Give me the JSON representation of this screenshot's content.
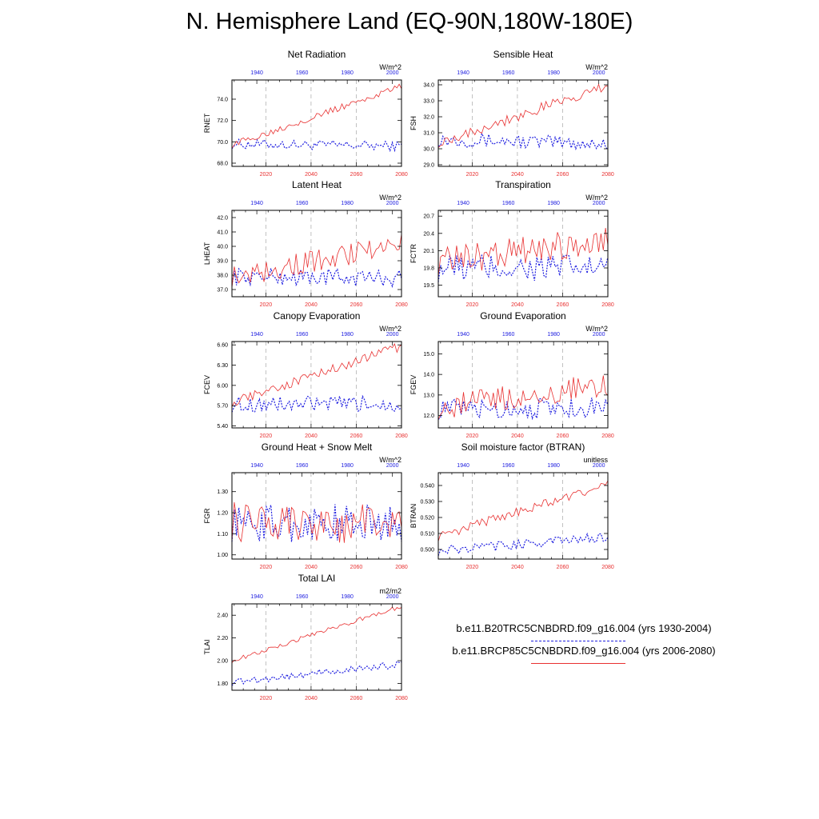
{
  "title": "N. Hemisphere Land (EQ-90N,180W-180E)",
  "legend": {
    "historical": "b.e11.B20TRC5CNBDRD.f09_g16.004 (yrs 1930-2004)",
    "future": "b.e11.BRCP85C5CNBDRD.f09_g16.004 (yrs 2006-2080)"
  },
  "colors": {
    "historical": "#2020e0",
    "future": "#e83030",
    "guides": "#999999"
  },
  "chart_data": [
    {
      "type": "line",
      "title": "Net Radiation",
      "ylabel": "RNET",
      "units": "W/m^2",
      "bottom_axis": {
        "ticks": [
          2020,
          2040,
          2060,
          2080
        ],
        "range": [
          2005,
          2080
        ]
      },
      "top_axis": {
        "ticks": [
          1940,
          1960,
          1980,
          2000
        ],
        "range": [
          1929,
          2004
        ]
      },
      "yticks": [
        "68.0",
        "70.0",
        "72.0",
        "74.0"
      ],
      "ylim": [
        67.7,
        75.8
      ],
      "series": [
        {
          "name": "b.e11.B20TRC5CNBDRD.f09_g16.004",
          "style": "dashed",
          "start": 69.8,
          "end": 69.6,
          "noise": 0.45
        },
        {
          "name": "b.e11.BRCP85C5CNBDRD.f09_g16.004",
          "style": "solid",
          "start": 69.7,
          "end": 75.2,
          "noise": 0.3
        }
      ]
    },
    {
      "type": "line",
      "title": "Sensible Heat",
      "ylabel": "FSH",
      "units": "W/m^2",
      "bottom_axis": {
        "ticks": [
          2020,
          2040,
          2060,
          2080
        ],
        "range": [
          2005,
          2080
        ]
      },
      "top_axis": {
        "ticks": [
          1940,
          1960,
          1980,
          2000
        ],
        "range": [
          1929,
          2004
        ]
      },
      "yticks": [
        "29.0",
        "30.0",
        "31.0",
        "32.0",
        "33.0",
        "34.0"
      ],
      "ylim": [
        28.9,
        34.3
      ],
      "series": [
        {
          "name": "b.e11.B20TRC5CNBDRD.f09_g16.004",
          "style": "dashed",
          "start": 30.6,
          "end": 30.3,
          "noise": 0.45
        },
        {
          "name": "b.e11.BRCP85C5CNBDRD.f09_g16.004",
          "style": "solid",
          "start": 30.4,
          "end": 33.9,
          "noise": 0.35
        }
      ]
    },
    {
      "type": "line",
      "title": "Latent Heat",
      "ylabel": "LHEAT",
      "units": "W/m^2",
      "bottom_axis": {
        "ticks": [
          2020,
          2040,
          2060,
          2080
        ],
        "range": [
          2005,
          2080
        ]
      },
      "top_axis": {
        "ticks": [
          1940,
          1960,
          1980,
          2000
        ],
        "range": [
          1929,
          2004
        ]
      },
      "yticks": [
        "37.0",
        "38.0",
        "39.0",
        "40.0",
        "41.0",
        "42.0"
      ],
      "ylim": [
        36.5,
        42.5
      ],
      "series": [
        {
          "name": "b.e11.B20TRC5CNBDRD.f09_g16.004",
          "style": "dashed",
          "start": 37.9,
          "end": 37.8,
          "noise": 0.6
        },
        {
          "name": "b.e11.BRCP85C5CNBDRD.f09_g16.004",
          "style": "solid",
          "start": 37.9,
          "end": 40.2,
          "noise": 0.8
        }
      ]
    },
    {
      "type": "line",
      "title": "Transpiration",
      "ylabel": "FCTR",
      "units": "W/m^2",
      "bottom_axis": {
        "ticks": [
          2020,
          2040,
          2060,
          2080
        ],
        "range": [
          2005,
          2080
        ]
      },
      "top_axis": {
        "ticks": [
          1940,
          1960,
          1980,
          2000
        ],
        "range": [
          1929,
          2004
        ]
      },
      "yticks": [
        "19.5",
        "19.8",
        "20.1",
        "20.4",
        "20.7"
      ],
      "ylim": [
        19.3,
        20.8
      ],
      "series": [
        {
          "name": "b.e11.B20TRC5CNBDRD.f09_g16.004",
          "style": "dashed",
          "start": 19.8,
          "end": 19.8,
          "noise": 0.25
        },
        {
          "name": "b.e11.BRCP85C5CNBDRD.f09_g16.004",
          "style": "solid",
          "start": 19.9,
          "end": 20.3,
          "noise": 0.25
        }
      ]
    },
    {
      "type": "line",
      "title": "Canopy Evaporation",
      "ylabel": "FCEV",
      "units": "W/m^2",
      "bottom_axis": {
        "ticks": [
          2020,
          2040,
          2060,
          2080
        ],
        "range": [
          2005,
          2080
        ]
      },
      "top_axis": {
        "ticks": [
          1940,
          1960,
          1980,
          2000
        ],
        "range": [
          1929,
          2004
        ]
      },
      "yticks": [
        "5.40",
        "5.70",
        "6.00",
        "6.30",
        "6.60"
      ],
      "ylim": [
        5.37,
        6.65
      ],
      "series": [
        {
          "name": "b.e11.B20TRC5CNBDRD.f09_g16.004",
          "style": "dashed",
          "start": 5.72,
          "end": 5.72,
          "noise": 0.12
        },
        {
          "name": "b.e11.BRCP85C5CNBDRD.f09_g16.004",
          "style": "solid",
          "start": 5.75,
          "end": 6.58,
          "noise": 0.07
        }
      ]
    },
    {
      "type": "line",
      "title": "Ground Evaporation",
      "ylabel": "FGEV",
      "units": "W/m^2",
      "bottom_axis": {
        "ticks": [
          2020,
          2040,
          2060,
          2080
        ],
        "range": [
          2005,
          2080
        ]
      },
      "top_axis": {
        "ticks": [
          1940,
          1960,
          1980,
          2000
        ],
        "range": [
          1929,
          2004
        ]
      },
      "yticks": [
        "12.0",
        "13.0",
        "14.0",
        "15.0"
      ],
      "ylim": [
        11.4,
        15.6
      ],
      "series": [
        {
          "name": "b.e11.B20TRC5CNBDRD.f09_g16.004",
          "style": "dashed",
          "start": 12.3,
          "end": 12.4,
          "noise": 0.5
        },
        {
          "name": "b.e11.BRCP85C5CNBDRD.f09_g16.004",
          "style": "solid",
          "start": 12.4,
          "end": 13.5,
          "noise": 0.6
        }
      ]
    },
    {
      "type": "line",
      "title": "Ground Heat + Snow Melt",
      "ylabel": "FGR",
      "units": "W/m^2",
      "bottom_axis": {
        "ticks": [
          2020,
          2040,
          2060,
          2080
        ],
        "range": [
          2005,
          2080
        ]
      },
      "top_axis": {
        "ticks": [
          1940,
          1960,
          1980,
          2000
        ],
        "range": [
          1929,
          2004
        ]
      },
      "yticks": [
        "1.00",
        "1.10",
        "1.20",
        "1.30"
      ],
      "ylim": [
        0.98,
        1.39
      ],
      "series": [
        {
          "name": "b.e11.B20TRC5CNBDRD.f09_g16.004",
          "style": "dashed",
          "start": 1.15,
          "end": 1.15,
          "noise": 0.09
        },
        {
          "name": "b.e11.BRCP85C5CNBDRD.f09_g16.004",
          "style": "solid",
          "start": 1.16,
          "end": 1.14,
          "noise": 0.1
        }
      ]
    },
    {
      "type": "line",
      "title": "Soil moisture factor (BTRAN)",
      "ylabel": "BTRAN",
      "units": "unitless",
      "bottom_axis": {
        "ticks": [
          2020,
          2040,
          2060,
          2080
        ],
        "range": [
          2005,
          2080
        ]
      },
      "top_axis": {
        "ticks": [
          1940,
          1960,
          1980,
          2000
        ],
        "range": [
          1929,
          2004
        ]
      },
      "yticks": [
        "0.500",
        "0.510",
        "0.520",
        "0.530",
        "0.540"
      ],
      "ylim": [
        0.494,
        0.548
      ],
      "series": [
        {
          "name": "b.e11.B20TRC5CNBDRD.f09_g16.004",
          "style": "dashed",
          "start": 0.499,
          "end": 0.508,
          "noise": 0.003
        },
        {
          "name": "b.e11.BRCP85C5CNBDRD.f09_g16.004",
          "style": "solid",
          "start": 0.508,
          "end": 0.541,
          "noise": 0.003
        }
      ]
    },
    {
      "type": "line",
      "title": "Total LAI",
      "ylabel": "TLAI",
      "units": "m2/m2",
      "bottom_axis": {
        "ticks": [
          2020,
          2040,
          2060,
          2080
        ],
        "range": [
          2005,
          2080
        ]
      },
      "top_axis": {
        "ticks": [
          1940,
          1960,
          1980,
          2000
        ],
        "range": [
          1929,
          2004
        ]
      },
      "yticks": [
        "1.80",
        "2.00",
        "2.20",
        "2.40"
      ],
      "ylim": [
        1.74,
        2.5
      ],
      "series": [
        {
          "name": "b.e11.B20TRC5CNBDRD.f09_g16.004",
          "style": "dashed",
          "start": 1.81,
          "end": 1.97,
          "noise": 0.03
        },
        {
          "name": "b.e11.BRCP85C5CNBDRD.f09_g16.004",
          "style": "solid",
          "start": 2.0,
          "end": 2.48,
          "noise": 0.02
        }
      ]
    }
  ]
}
